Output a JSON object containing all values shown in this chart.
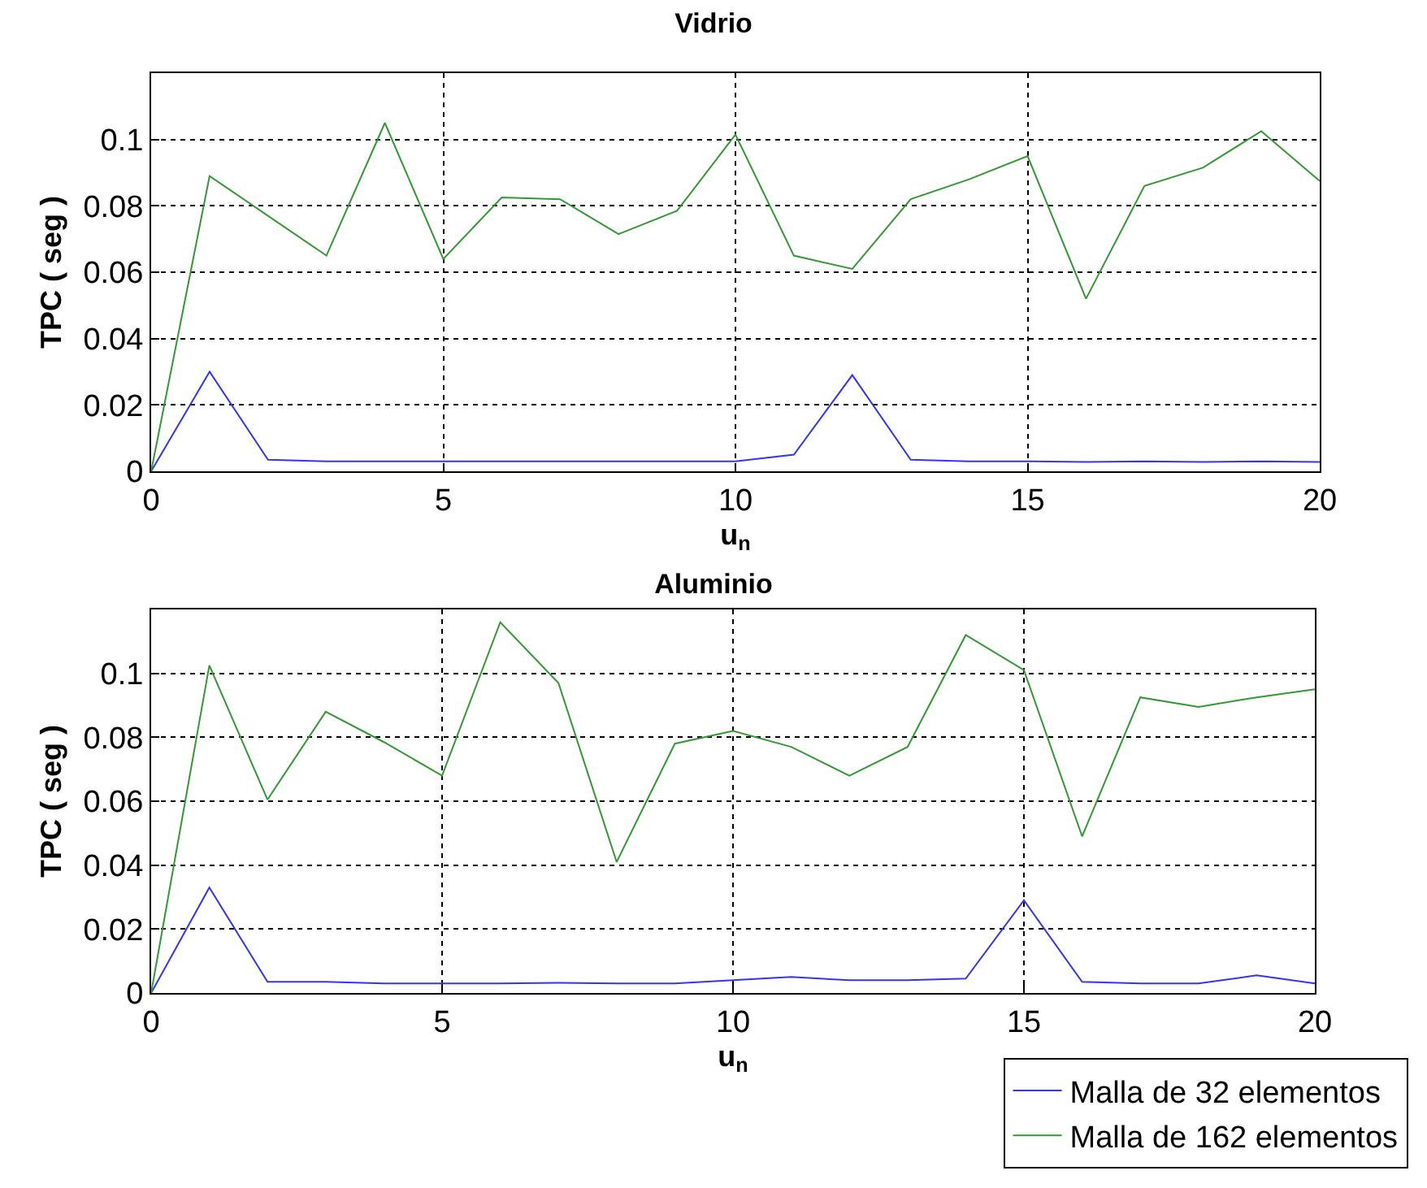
{
  "chart_data": [
    {
      "type": "line",
      "title": "Vidrio",
      "xlabel": "u$_{n}$",
      "ylabel": "TPC ( seg )",
      "x": [
        0,
        1,
        2,
        3,
        4,
        5,
        6,
        7,
        8,
        9,
        10,
        11,
        12,
        13,
        14,
        15,
        16,
        17,
        18,
        19,
        20
      ],
      "xlim": [
        0,
        20
      ],
      "xticks": [
        0,
        5,
        10,
        15,
        20
      ],
      "ylim": [
        0,
        0.12
      ],
      "yticks": [
        0,
        0.02,
        0.04,
        0.06,
        0.08,
        0.1
      ],
      "grid": true,
      "legend": false,
      "series": [
        {
          "color": "#3333ff",
          "values": [
            0,
            0.03,
            0.0035,
            0.003,
            0.003,
            0.003,
            0.003,
            0.003,
            0.003,
            0.003,
            0.003,
            0.005,
            0.029,
            0.0035,
            0.003,
            0.003,
            0.0028,
            0.003,
            0.0028,
            0.003,
            0.0028
          ]
        },
        {
          "color": "#339933",
          "values": [
            0,
            0.089,
            0.077,
            0.065,
            0.105,
            0.064,
            0.0825,
            0.082,
            0.0715,
            0.0785,
            0.1015,
            0.065,
            0.061,
            0.082,
            0.088,
            0.095,
            0.052,
            0.086,
            0.0915,
            0.1025,
            0.0875
          ]
        }
      ]
    },
    {
      "type": "line",
      "title": "Aluminio",
      "xlabel": "u$_{n}$",
      "ylabel": "TPC ( seg )",
      "x": [
        0,
        1,
        2,
        3,
        4,
        5,
        6,
        7,
        8,
        9,
        10,
        11,
        12,
        13,
        14,
        15,
        16,
        17,
        18,
        19,
        20
      ],
      "xlim": [
        0,
        20
      ],
      "xticks": [
        0,
        5,
        10,
        15,
        20
      ],
      "ylim": [
        0,
        0.12
      ],
      "yticks": [
        0,
        0.02,
        0.04,
        0.06,
        0.08,
        0.1
      ],
      "grid": true,
      "legend": "bottom right",
      "series": [
        {
          "name": "Malla de 32 elementos",
          "color": "#3333ff",
          "values": [
            0,
            0.033,
            0.0035,
            0.0035,
            0.003,
            0.003,
            0.003,
            0.0032,
            0.003,
            0.003,
            0.004,
            0.005,
            0.004,
            0.004,
            0.0045,
            0.029,
            0.0035,
            0.003,
            0.003,
            0.0055,
            0.003
          ]
        },
        {
          "name": "Malla de 162 elementos",
          "color": "#339933",
          "values": [
            0,
            0.1025,
            0.0605,
            0.088,
            0.0785,
            0.068,
            0.116,
            0.097,
            0.041,
            0.078,
            0.082,
            0.077,
            0.068,
            0.077,
            0.112,
            0.101,
            0.049,
            0.0925,
            0.0895,
            0.0925,
            0.095
          ]
        }
      ]
    }
  ]
}
